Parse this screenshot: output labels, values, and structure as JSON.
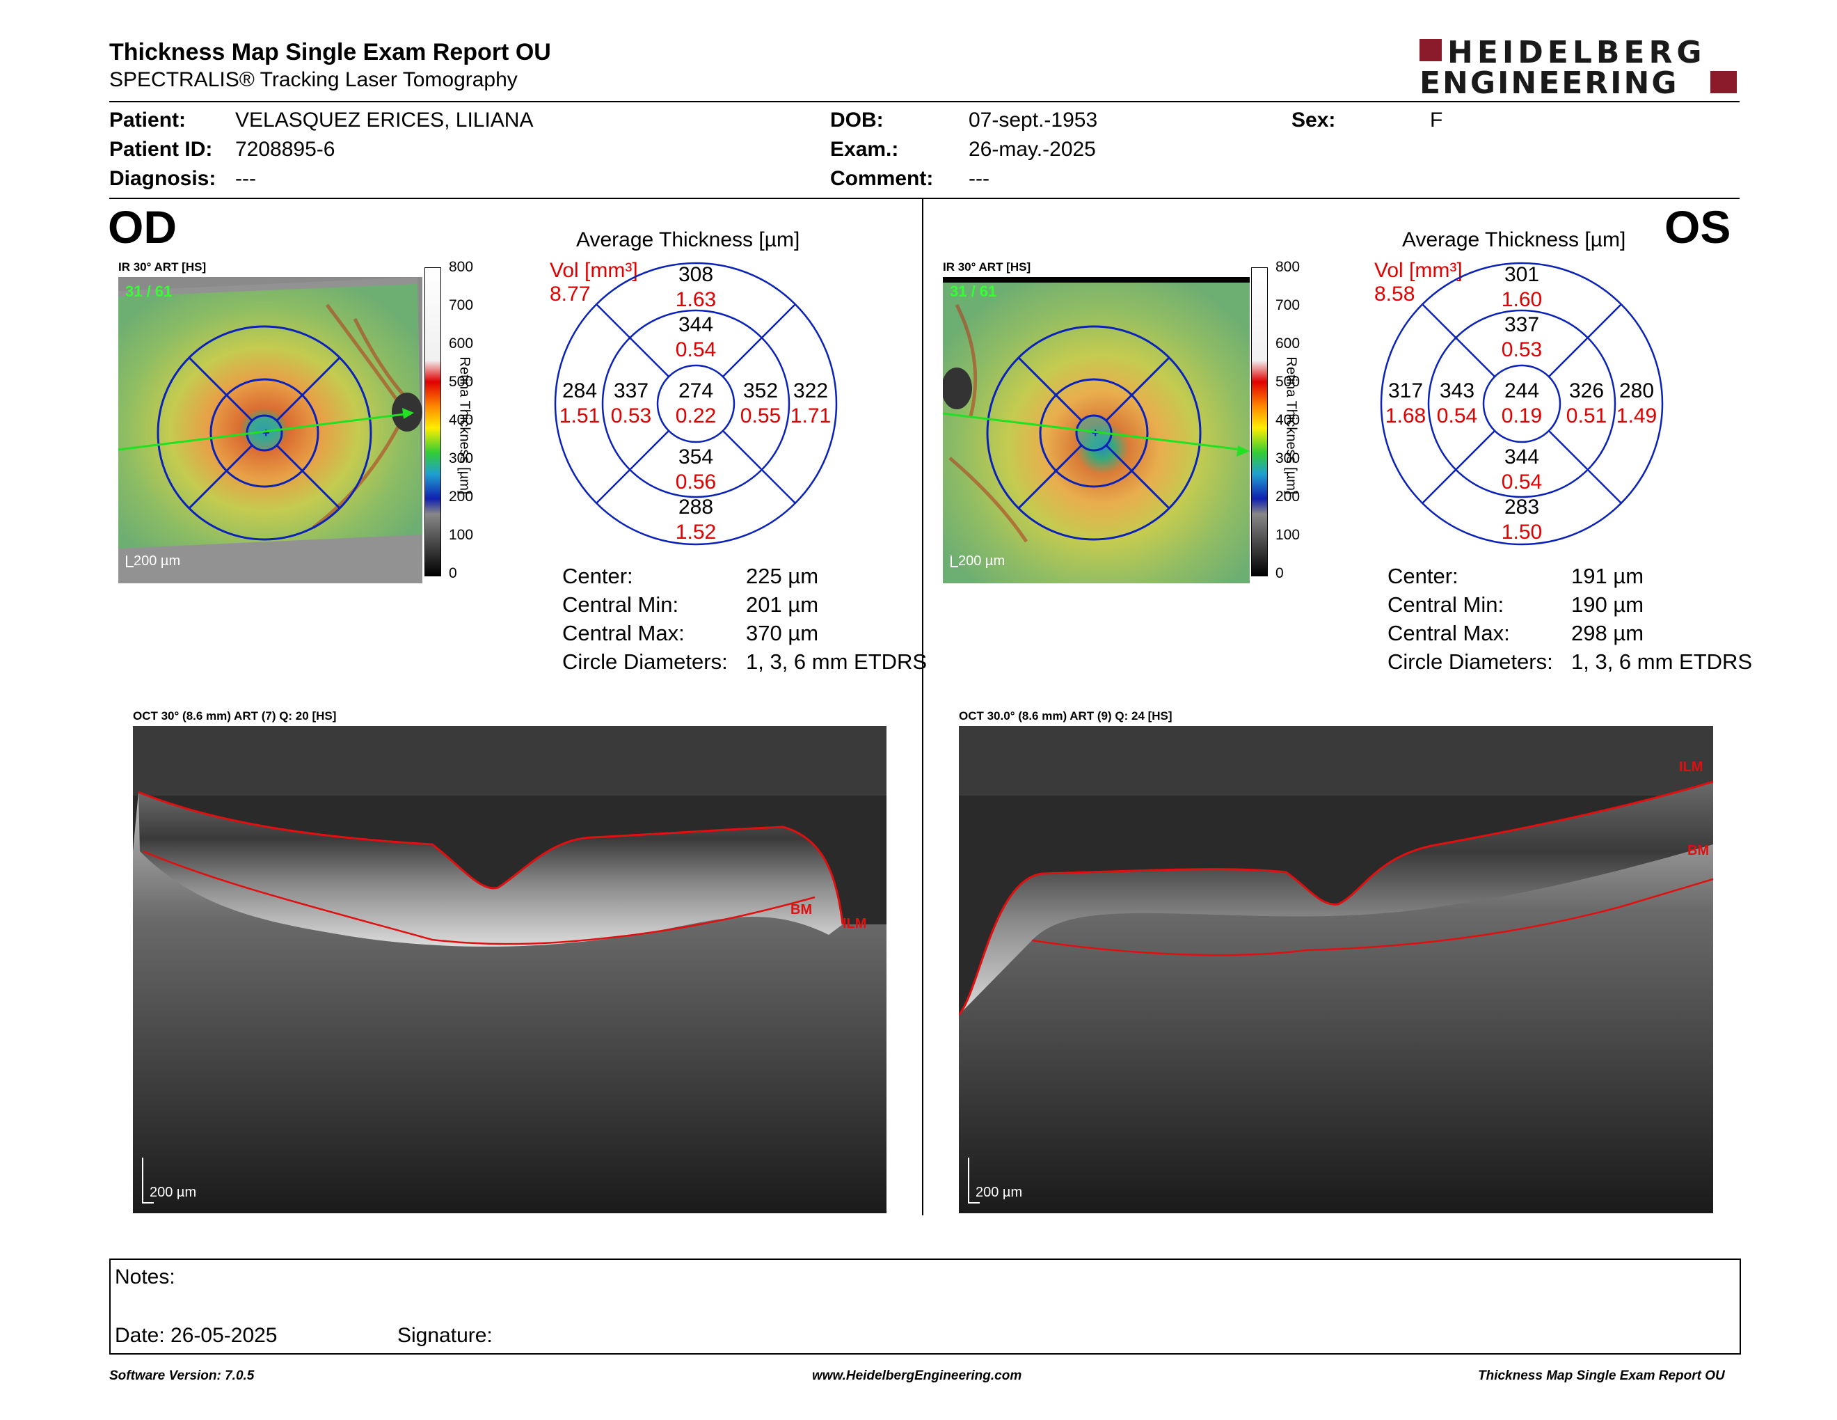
{
  "report": {
    "title": "Thickness Map Single Exam Report OU",
    "subtitle": "SPECTRALIS® Tracking Laser Tomography",
    "brand_top": "HEIDELBERG",
    "brand_bottom": "ENGINEERING",
    "brand_color": "#8b1a2b"
  },
  "patient": {
    "patient_label": "Patient:",
    "patient_value": "VELASQUEZ ERICES, LILIANA",
    "id_label": "Patient ID:",
    "id_value": "7208895-6",
    "diagnosis_label": "Diagnosis:",
    "diagnosis_value": "---",
    "dob_label": "DOB:",
    "dob_value": "07-sept.-1953",
    "exam_label": "Exam.:",
    "exam_value": "26-may.-2025",
    "comment_label": "Comment:",
    "comment_value": "---",
    "sex_label": "Sex:",
    "sex_value": "F"
  },
  "od": {
    "eye": "OD",
    "ir_caption": "IR 30° ART [HS]",
    "frame_count": "31 / 61",
    "scale_label": "200 µm",
    "colorbar_ticks": [
      "800",
      "700",
      "600",
      "500",
      "400",
      "300",
      "200",
      "100",
      "0"
    ],
    "colorbar_title": "Retina Thickness [µm]",
    "avg_title": "Average Thickness [µm]",
    "vol_label": "Vol [mm³]",
    "vol_total": "8.77",
    "sectors": {
      "outer_sup": {
        "t": "308",
        "v": "1.63"
      },
      "inner_sup": {
        "t": "344",
        "v": "0.54"
      },
      "outer_nasal_left": {
        "t": "284",
        "v": "1.51"
      },
      "inner_left": {
        "t": "337",
        "v": "0.53"
      },
      "center": {
        "t": "274",
        "v": "0.22"
      },
      "inner_right": {
        "t": "352",
        "v": "0.55"
      },
      "outer_right": {
        "t": "322",
        "v": "1.71"
      },
      "inner_inf": {
        "t": "354",
        "v": "0.56"
      },
      "outer_inf": {
        "t": "288",
        "v": "1.52"
      }
    },
    "stats": [
      {
        "label": "Center:",
        "value": "225 µm"
      },
      {
        "label": "Central Min:",
        "value": "201 µm"
      },
      {
        "label": "Central Max:",
        "value": "370 µm"
      },
      {
        "label": "Circle Diameters:",
        "value": "1, 3, 6 mm ETDRS"
      }
    ],
    "oct_caption": "OCT 30° (8.6 mm) ART (7) Q: 20 [HS]",
    "oct_scale": "200 µm",
    "label_bm": "BM",
    "label_ilm": "ILM"
  },
  "os": {
    "eye": "OS",
    "ir_caption": "IR 30° ART [HS]",
    "frame_count": "31 / 61",
    "scale_label": "200 µm",
    "colorbar_ticks": [
      "800",
      "700",
      "600",
      "500",
      "400",
      "300",
      "200",
      "100",
      "0"
    ],
    "colorbar_title": "Retina Thickness [µm]",
    "avg_title": "Average Thickness [µm]",
    "vol_label": "Vol [mm³]",
    "vol_total": "8.58",
    "sectors": {
      "outer_sup": {
        "t": "301",
        "v": "1.60"
      },
      "inner_sup": {
        "t": "337",
        "v": "0.53"
      },
      "outer_nasal_left": {
        "t": "317",
        "v": "1.68"
      },
      "inner_left": {
        "t": "343",
        "v": "0.54"
      },
      "center": {
        "t": "244",
        "v": "0.19"
      },
      "inner_right": {
        "t": "326",
        "v": "0.51"
      },
      "outer_right": {
        "t": "280",
        "v": "1.49"
      },
      "inner_inf": {
        "t": "344",
        "v": "0.54"
      },
      "outer_inf": {
        "t": "283",
        "v": "1.50"
      }
    },
    "stats": [
      {
        "label": "Center:",
        "value": "191 µm"
      },
      {
        "label": "Central Min:",
        "value": "190 µm"
      },
      {
        "label": "Central Max:",
        "value": "298 µm"
      },
      {
        "label": "Circle Diameters:",
        "value": "1, 3, 6 mm ETDRS"
      }
    ],
    "oct_caption": "OCT 30.0° (8.6 mm) ART (9) Q: 24 [HS]",
    "oct_scale": "200 µm",
    "label_bm": "BM",
    "label_ilm": "ILM"
  },
  "notes": {
    "notes_label": "Notes:",
    "date_label": "Date: 26-05-2025",
    "signature_label": "Signature:"
  },
  "footer": {
    "software": "Software Version: 7.0.5",
    "website": "www.HeidelbergEngineering.com",
    "report_name": "Thickness Map Single Exam Report OU"
  }
}
